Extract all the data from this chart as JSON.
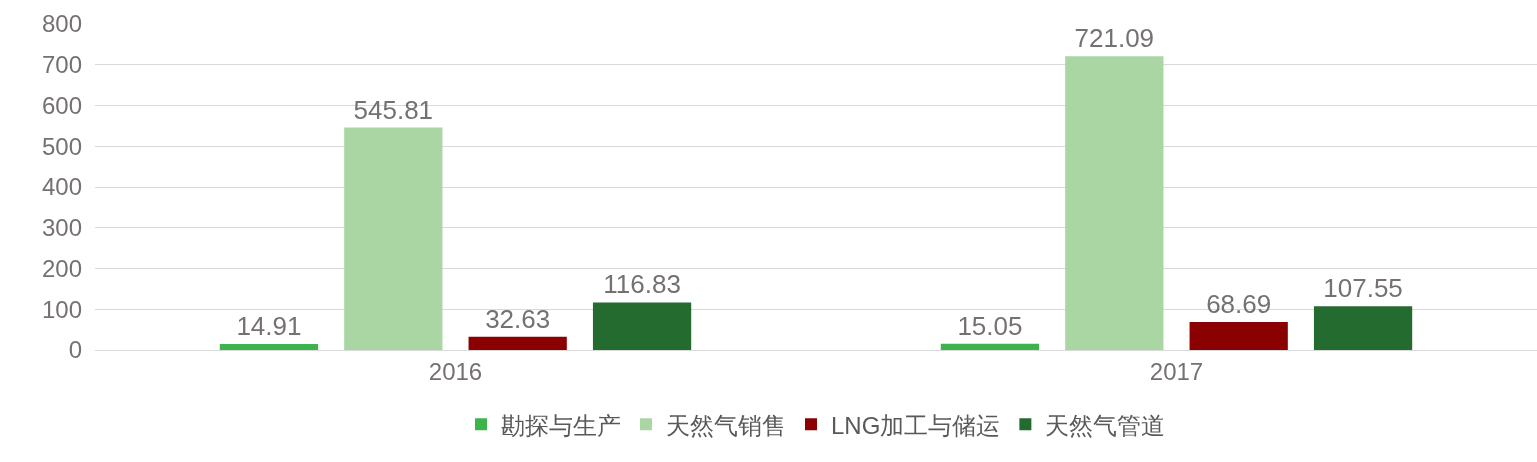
{
  "chart_data": {
    "type": "bar",
    "categories": [
      "2016",
      "2017"
    ],
    "series": [
      {
        "name": "勘探与生产",
        "color": "#3cb44b",
        "values": [
          14.91,
          15.05
        ]
      },
      {
        "name": "天然气销售",
        "color": "#a9d6a3",
        "values": [
          545.81,
          721.09
        ]
      },
      {
        "name": "LNG加工与储运",
        "color": "#8b0000",
        "values": [
          32.63,
          68.69
        ]
      },
      {
        "name": "天然气管道",
        "color": "#236b2e",
        "values": [
          116.83,
          107.55
        ]
      }
    ],
    "ylim": [
      0,
      800
    ],
    "yticks": [
      0,
      100,
      200,
      300,
      400,
      500,
      600,
      700,
      800
    ],
    "grid": "y",
    "legend": "bottom",
    "data_labels": true
  }
}
